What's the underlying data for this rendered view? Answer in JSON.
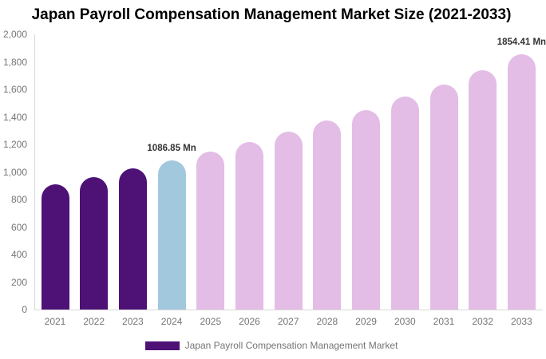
{
  "chart_data": {
    "type": "bar",
    "title": "Japan Payroll Compensation Management Market Size (2021-2033)",
    "categories": [
      "2021",
      "2022",
      "2023",
      "2024",
      "2025",
      "2026",
      "2027",
      "2028",
      "2029",
      "2030",
      "2031",
      "2032",
      "2033"
    ],
    "values": [
      908,
      960,
      1024,
      1086.85,
      1150,
      1220,
      1295,
      1375,
      1450,
      1545,
      1635,
      1740,
      1854.41
    ],
    "bar_colors": [
      "#4E1277",
      "#4E1277",
      "#4E1277",
      "#A2C8DE",
      "#E3BDE6",
      "#E3BDE6",
      "#E3BDE6",
      "#E3BDE6",
      "#E3BDE6",
      "#E3BDE6",
      "#E3BDE6",
      "#E3BDE6",
      "#E3BDE6"
    ],
    "data_labels": {
      "2024": "1086.85 Mn",
      "2033": "1854.41 Mn"
    },
    "unit": "Mn",
    "xlabel": "",
    "ylabel": "",
    "ylim": [
      0,
      2000
    ],
    "yticks": [
      0,
      200,
      400,
      600,
      800,
      1000,
      1200,
      1400,
      1600,
      1800,
      2000
    ],
    "yticklabels": [
      "0",
      "200",
      "400",
      "600",
      "800",
      "1,000",
      "1,200",
      "1,400",
      "1,600",
      "1,800",
      "2,000"
    ],
    "grid": false,
    "legend_position": "bottom",
    "legend_label": "Japan Payroll Compensation Management Market",
    "legend_swatch_color": "#4E1277"
  },
  "colors": {
    "historical_bar": "#4E1277",
    "current_year_bar": "#A2C8DE",
    "forecast_bar": "#E3BDE6",
    "axis_line": "#D9D9D9",
    "axis_text": "#757575",
    "title_text": "#000000",
    "data_label_text": "#333333",
    "background": "#FFFFFF"
  }
}
